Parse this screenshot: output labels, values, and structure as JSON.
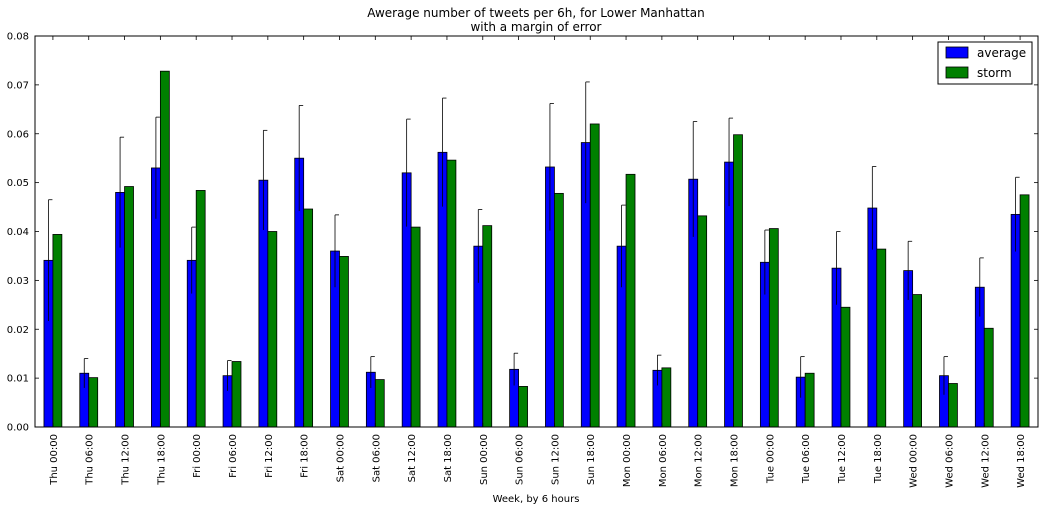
{
  "chart_data": {
    "type": "bar",
    "title": "Awerage number of tweets per 6h, for Lower Manhattan",
    "subtitle": "with a margin of error",
    "xlabel": "Week, by 6 hours",
    "ylabel": "",
    "ylim": [
      0,
      0.08
    ],
    "yticks": [
      "0.00",
      "0.01",
      "0.02",
      "0.03",
      "0.04",
      "0.05",
      "0.06",
      "0.07",
      "0.08"
    ],
    "grid": false,
    "legend_position": "top-right",
    "categories": [
      "Thu 00:00",
      "Thu 06:00",
      "Thu 12:00",
      "Thu 18:00",
      "Fri 00:00",
      "Fri 06:00",
      "Fri 12:00",
      "Fri 18:00",
      "Sat 00:00",
      "Sat 06:00",
      "Sat 12:00",
      "Sat 18:00",
      "Sun 00:00",
      "Sun 06:00",
      "Sun 12:00",
      "Sun 18:00",
      "Mon 00:00",
      "Mon 06:00",
      "Mon 12:00",
      "Mon 18:00",
      "Tue 00:00",
      "Tue 06:00",
      "Tue 12:00",
      "Tue 18:00",
      "Wed 00:00",
      "Wed 06:00",
      "Wed 12:00",
      "Wed 18:00"
    ],
    "series": [
      {
        "name": "average",
        "color": "#0000ff",
        "values": [
          0.0341,
          0.011,
          0.048,
          0.053,
          0.0341,
          0.0105,
          0.0505,
          0.055,
          0.036,
          0.0112,
          0.052,
          0.0562,
          0.037,
          0.0118,
          0.0532,
          0.0582,
          0.037,
          0.0116,
          0.0507,
          0.0542,
          0.0337,
          0.0102,
          0.0325,
          0.0448,
          0.032,
          0.0105,
          0.0286,
          0.0435
        ],
        "error": [
          0.0124,
          0.003,
          0.0113,
          0.0104,
          0.0068,
          0.0031,
          0.0102,
          0.0108,
          0.0074,
          0.0032,
          0.011,
          0.0111,
          0.0075,
          0.0033,
          0.013,
          0.0124,
          0.0084,
          0.0031,
          0.0118,
          0.009,
          0.0066,
          0.0042,
          0.0075,
          0.0085,
          0.006,
          0.0039,
          0.006,
          0.0076
        ]
      },
      {
        "name": "storm",
        "color": "#008000",
        "values": [
          0.0394,
          0.0101,
          0.0492,
          0.0728,
          0.0484,
          0.0134,
          0.04,
          0.0446,
          0.0349,
          0.0097,
          0.0409,
          0.0546,
          0.0412,
          0.0083,
          0.0478,
          0.062,
          0.0517,
          0.0121,
          0.0432,
          0.0598,
          0.0406,
          0.011,
          0.0245,
          0.0364,
          0.0271,
          0.0089,
          0.0202,
          0.0475
        ]
      }
    ]
  }
}
